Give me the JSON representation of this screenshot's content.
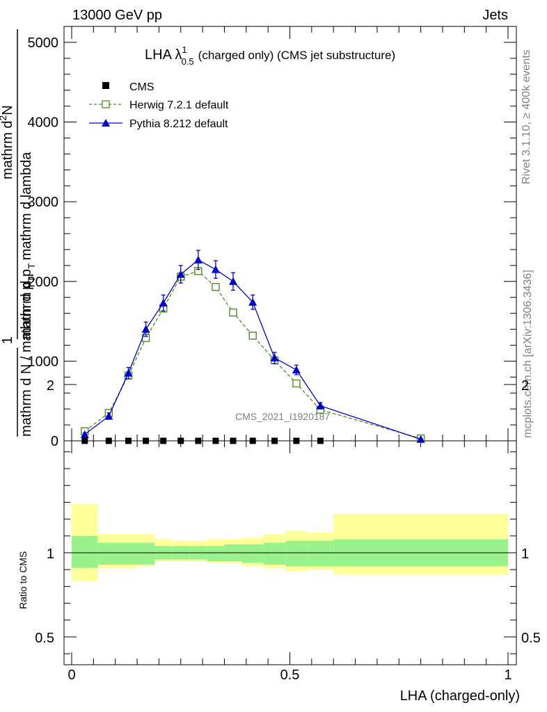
{
  "header": {
    "left": "13000 GeV pp",
    "right": "Jets"
  },
  "side_labels": {
    "rivet": "Rivet 3.1.10, ≥ 400k events",
    "mcplots": "mcplots.cern.ch [arXiv:1306.3436]"
  },
  "watermark": "CMS_2021_I1920187",
  "chart_data": [
    {
      "type": "line",
      "title": "LHA λ",
      "title_sup": "1",
      "title_sub": "0.5",
      "title_rest": "(charged only) (CMS jet substructure)",
      "ylabel_num_top": "mathrm d",
      "ylabel_num_sup": "2",
      "ylabel_num_N": "N",
      "ylabel_den": "mathrm d p",
      "ylabel_den_sub": "T",
      "ylabel_den_rest": "mathrm d lambda",
      "ylabel_pre_num": "1",
      "ylabel_pre_den": "mathrm d N / mathrm d p",
      "ylabel_pre_den_sub": "T",
      "xlim": [
        0,
        1
      ],
      "ylim": [
        0,
        5200
      ],
      "yticks": [
        0,
        1000,
        2000,
        3000,
        4000,
        5000
      ],
      "ytick_labels": [
        "0",
        "1000",
        "2000",
        "3000",
        "4000",
        "5000"
      ],
      "legend": {
        "placement": "top-left",
        "cms": "CMS",
        "herwig": "Herwig 7.2.1 default",
        "pythia": "Pythia 8.212 default"
      },
      "series": [
        {
          "name": "CMS",
          "color": "#000000",
          "marker": "filled-square",
          "x": [
            0.03,
            0.085,
            0.13,
            0.17,
            0.21,
            0.25,
            0.29,
            0.33,
            0.37,
            0.415,
            0.465,
            0.515,
            0.57
          ],
          "y": [
            0,
            0,
            0,
            0,
            0,
            0,
            0,
            0,
            0,
            0,
            0,
            0,
            0
          ]
        },
        {
          "name": "Herwig 7.2.1 default",
          "color": "#4d8c1f",
          "marker": "open-square",
          "x": [
            0.03,
            0.085,
            0.13,
            0.17,
            0.21,
            0.25,
            0.29,
            0.33,
            0.37,
            0.415,
            0.465,
            0.515,
            0.57,
            0.8
          ],
          "y": [
            120,
            350,
            820,
            1290,
            1660,
            2060,
            2130,
            1930,
            1610,
            1320,
            1010,
            720,
            390,
            30
          ]
        },
        {
          "name": "Pythia 8.212 default",
          "color": "#0000cc",
          "marker": "filled-triangle",
          "x": [
            0.03,
            0.085,
            0.13,
            0.17,
            0.21,
            0.25,
            0.29,
            0.33,
            0.37,
            0.415,
            0.465,
            0.515,
            0.57,
            0.8
          ],
          "y": [
            80,
            310,
            850,
            1400,
            1730,
            2090,
            2270,
            2150,
            2000,
            1740,
            1040,
            890,
            440,
            20
          ],
          "yerr": [
            20,
            40,
            70,
            90,
            100,
            110,
            120,
            110,
            110,
            90,
            70,
            60,
            40,
            10
          ]
        }
      ]
    },
    {
      "type": "area",
      "ylabel": "Ratio to CMS",
      "xlabel": "LHA (charged-only)",
      "xlim": [
        0,
        1
      ],
      "ylim": [
        0.35,
        2.25
      ],
      "xticks": [
        0,
        0.5,
        1
      ],
      "xtick_labels": [
        "0",
        "0.5",
        "1"
      ],
      "yticks": [
        0.5,
        1,
        2
      ],
      "ytick_labels": [
        "0.5",
        "1",
        "2"
      ],
      "bins": [
        0,
        0.06,
        0.15,
        0.19,
        0.23,
        0.27,
        0.31,
        0.35,
        0.39,
        0.44,
        0.49,
        0.54,
        0.6,
        1.0
      ],
      "band_inner": [
        [
          0.91,
          1.1
        ],
        [
          0.93,
          1.06
        ],
        [
          0.93,
          1.06
        ],
        [
          0.96,
          1.04
        ],
        [
          0.96,
          1.04
        ],
        [
          0.96,
          1.04
        ],
        [
          0.95,
          1.04
        ],
        [
          0.95,
          1.05
        ],
        [
          0.94,
          1.05
        ],
        [
          0.93,
          1.06
        ],
        [
          0.92,
          1.07
        ],
        [
          0.92,
          1.07
        ],
        [
          0.92,
          1.08
        ]
      ],
      "band_outer": [
        [
          0.83,
          1.29
        ],
        [
          0.91,
          1.11
        ],
        [
          0.92,
          1.11
        ],
        [
          0.95,
          1.08
        ],
        [
          0.95,
          1.07
        ],
        [
          0.95,
          1.07
        ],
        [
          0.94,
          1.08
        ],
        [
          0.94,
          1.08
        ],
        [
          0.92,
          1.09
        ],
        [
          0.91,
          1.11
        ],
        [
          0.89,
          1.13
        ],
        [
          0.9,
          1.12
        ],
        [
          0.87,
          1.23
        ]
      ],
      "colors": {
        "inner": "#99f28c",
        "outer": "#ffff99",
        "line": "#000000"
      }
    }
  ]
}
